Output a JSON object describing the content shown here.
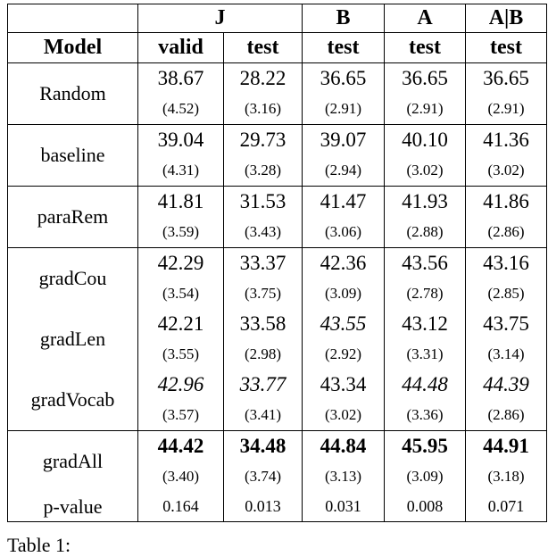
{
  "table": {
    "group_headers": [
      "J",
      "B",
      "A",
      "A|B"
    ],
    "model_header": "Model",
    "columns": [
      "valid",
      "test",
      "test",
      "test",
      "test"
    ],
    "blocks": [
      [
        {
          "model": "Random",
          "values": [
            "38.67",
            "28.22",
            "36.65",
            "36.65",
            "36.65"
          ],
          "stds": [
            "(4.52)",
            "(3.16)",
            "(2.91)",
            "(2.91)",
            "(2.91)"
          ]
        }
      ],
      [
        {
          "model": "baseline",
          "values": [
            "39.04",
            "29.73",
            "39.07",
            "40.10",
            "41.36"
          ],
          "stds": [
            "(4.31)",
            "(3.28)",
            "(2.94)",
            "(3.02)",
            "(3.02)"
          ]
        }
      ],
      [
        {
          "model": "paraRem",
          "values": [
            "41.81",
            "31.53",
            "41.47",
            "41.93",
            "41.86"
          ],
          "stds": [
            "(3.59)",
            "(3.43)",
            "(3.06)",
            "(2.88)",
            "(2.86)"
          ]
        }
      ],
      [
        {
          "model": "gradCou",
          "values": [
            "42.29",
            "33.37",
            "42.36",
            "43.56",
            "43.16"
          ],
          "stds": [
            "(3.54)",
            "(3.75)",
            "(3.09)",
            "(2.78)",
            "(2.85)"
          ]
        },
        {
          "model": "gradLen",
          "values": [
            "42.21",
            "33.58",
            "43.55",
            "43.12",
            "43.75"
          ],
          "stds": [
            "(3.55)",
            "(2.98)",
            "(2.92)",
            "(3.31)",
            "(3.14)"
          ],
          "italic": [
            2
          ]
        },
        {
          "model": "gradVocab",
          "values": [
            "42.96",
            "33.77",
            "43.34",
            "44.48",
            "44.39"
          ],
          "stds": [
            "(3.57)",
            "(3.41)",
            "(3.02)",
            "(3.36)",
            "(2.86)"
          ],
          "italic": [
            0,
            1,
            3,
            4
          ]
        }
      ],
      [
        {
          "model": "gradAll",
          "values": [
            "44.42",
            "34.48",
            "44.84",
            "45.95",
            "44.91"
          ],
          "stds": [
            "(3.40)",
            "(3.74)",
            "(3.13)",
            "(3.09)",
            "(3.18)"
          ],
          "bold": true
        },
        {
          "model": "p-value",
          "values": [
            "0.164",
            "0.013",
            "0.031",
            "0.008",
            "0.071"
          ]
        }
      ]
    ]
  },
  "caption": "Table 1:"
}
